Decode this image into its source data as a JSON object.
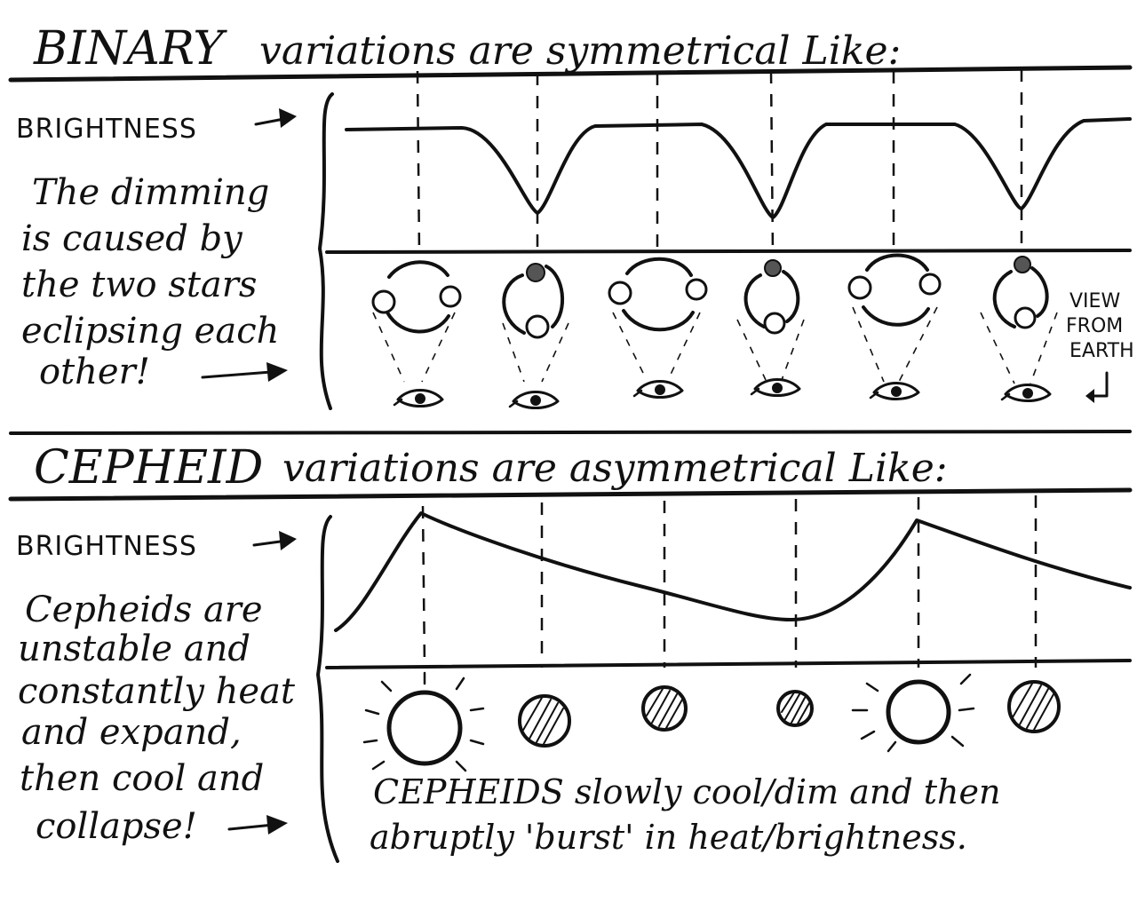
{
  "binary": {
    "title_word": "BINARY",
    "title_rest": "variations are symmetrical Like:",
    "brightness_label": "BRIGHTNESS",
    "note_lines": [
      "The dimming",
      "is caused by",
      "the two stars",
      "eclipsing each",
      "other!"
    ],
    "view_lines": [
      "VIEW",
      "FROM",
      "EARTH"
    ]
  },
  "cepheid": {
    "title_word": "CEPHEID",
    "title_rest": "variations are asymmetrical Like:",
    "brightness_label": "BRIGHTNESS",
    "note_lines": [
      "Cepheids are",
      "unstable and",
      "constantly heat",
      "and expand,",
      "then cool and",
      "collapse!"
    ],
    "caption_lines": [
      "CEPHEIDS slowly cool/dim and then",
      "abruptly 'burst' in heat/brightness."
    ]
  },
  "icons": {
    "arrow": "right-arrow-icon",
    "eye": "eye-icon",
    "star": "star-icon",
    "return_arrow": "return-arrow-icon"
  }
}
